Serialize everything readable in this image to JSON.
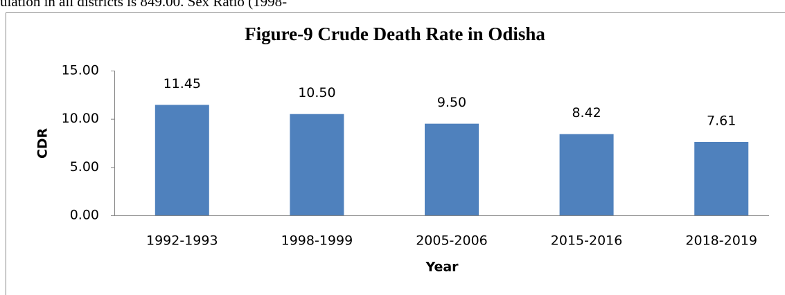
{
  "page_text": "ulation in all districts is 849.00. Sex Ratio (1998-",
  "chart_data": {
    "type": "bar",
    "title": "Figure-9 Crude Death Rate in Odisha",
    "x_label": "Year",
    "y_label": "CDR",
    "categories": [
      "1992-1993",
      "1998-1999",
      "2005-2006",
      "2015-2016",
      "2018-2019"
    ],
    "values": [
      11.45,
      10.5,
      9.5,
      8.42,
      7.61
    ],
    "value_labels": [
      "11.45",
      "10.50",
      "9.50",
      "8.42",
      "7.61"
    ],
    "color": "#4f81bd",
    "ylim": [
      0,
      15
    ],
    "yticks": [
      {
        "value": 0,
        "label": "0.00"
      },
      {
        "value": 5,
        "label": "5.00"
      },
      {
        "value": 10,
        "label": "10.00"
      },
      {
        "value": 15,
        "label": "15.00"
      }
    ],
    "grid": false
  }
}
